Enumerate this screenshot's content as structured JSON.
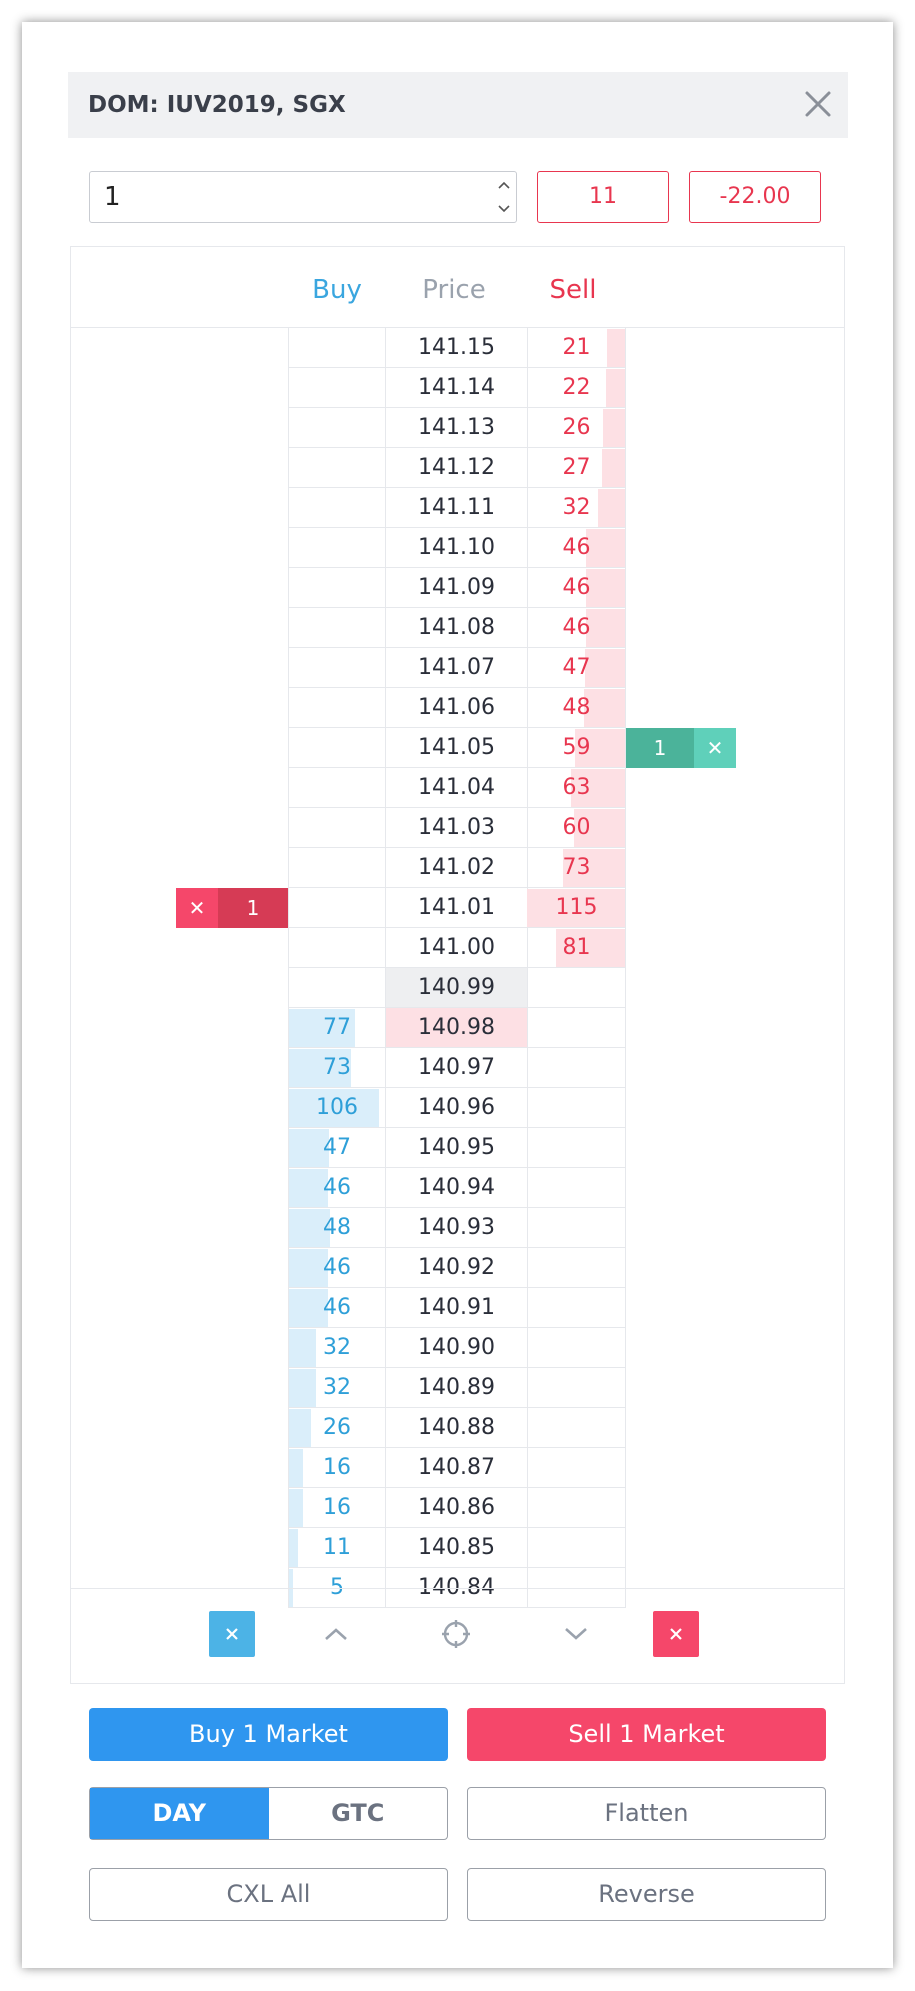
{
  "header": {
    "title": "DOM: IUV2019, SGX",
    "close_icon": "close-icon"
  },
  "order_entry": {
    "quantity": "1",
    "position_box": "11",
    "pnl_box": "-22.00"
  },
  "columns": {
    "buy": "Buy",
    "price": "Price",
    "sell": "Sell"
  },
  "colors": {
    "buy": "#2e9fd8",
    "sell": "#e8364f",
    "buy_fill": "#daeefa",
    "sell_fill": "#fde0e4",
    "accent_buy": "#2f96ef",
    "accent_sell": "#f5476a"
  },
  "ladder": [
    {
      "price": "141.15",
      "buy": "",
      "sell": "21"
    },
    {
      "price": "141.14",
      "buy": "",
      "sell": "22"
    },
    {
      "price": "141.13",
      "buy": "",
      "sell": "26"
    },
    {
      "price": "141.12",
      "buy": "",
      "sell": "27"
    },
    {
      "price": "141.11",
      "buy": "",
      "sell": "32"
    },
    {
      "price": "141.10",
      "buy": "",
      "sell": "46"
    },
    {
      "price": "141.09",
      "buy": "",
      "sell": "46"
    },
    {
      "price": "141.08",
      "buy": "",
      "sell": "46"
    },
    {
      "price": "141.07",
      "buy": "",
      "sell": "47"
    },
    {
      "price": "141.06",
      "buy": "",
      "sell": "48"
    },
    {
      "price": "141.05",
      "buy": "",
      "sell": "59",
      "sell_order": "1"
    },
    {
      "price": "141.04",
      "buy": "",
      "sell": "63"
    },
    {
      "price": "141.03",
      "buy": "",
      "sell": "60"
    },
    {
      "price": "141.02",
      "buy": "",
      "sell": "73"
    },
    {
      "price": "141.01",
      "buy": "",
      "sell": "115",
      "buy_order": "1"
    },
    {
      "price": "141.00",
      "buy": "",
      "sell": "81"
    },
    {
      "price": "140.99",
      "buy": "",
      "sell": "",
      "highlight": "last"
    },
    {
      "price": "140.98",
      "buy": "77",
      "sell": "",
      "highlight": "sell"
    },
    {
      "price": "140.97",
      "buy": "73",
      "sell": ""
    },
    {
      "price": "140.96",
      "buy": "106",
      "sell": ""
    },
    {
      "price": "140.95",
      "buy": "47",
      "sell": ""
    },
    {
      "price": "140.94",
      "buy": "46",
      "sell": ""
    },
    {
      "price": "140.93",
      "buy": "48",
      "sell": ""
    },
    {
      "price": "140.92",
      "buy": "46",
      "sell": ""
    },
    {
      "price": "140.91",
      "buy": "46",
      "sell": ""
    },
    {
      "price": "140.90",
      "buy": "32",
      "sell": ""
    },
    {
      "price": "140.89",
      "buy": "32",
      "sell": ""
    },
    {
      "price": "140.88",
      "buy": "26",
      "sell": ""
    },
    {
      "price": "140.87",
      "buy": "16",
      "sell": ""
    },
    {
      "price": "140.86",
      "buy": "16",
      "sell": ""
    },
    {
      "price": "140.85",
      "buy": "11",
      "sell": ""
    },
    {
      "price": "140.84",
      "buy": "5",
      "sell": ""
    }
  ],
  "toolbar": {
    "cancel_buys_icon": "close-icon",
    "scroll_up_icon": "chevron-up-icon",
    "center_icon": "crosshair-icon",
    "scroll_down_icon": "chevron-down-icon",
    "cancel_sells_icon": "close-icon"
  },
  "actions": {
    "buy_market": "Buy 1 Market",
    "sell_market": "Sell 1 Market",
    "tif_day": "DAY",
    "tif_gtc": "GTC",
    "tif_selected": "DAY",
    "flatten": "Flatten",
    "cancel_all": "CXL All",
    "reverse": "Reverse"
  }
}
